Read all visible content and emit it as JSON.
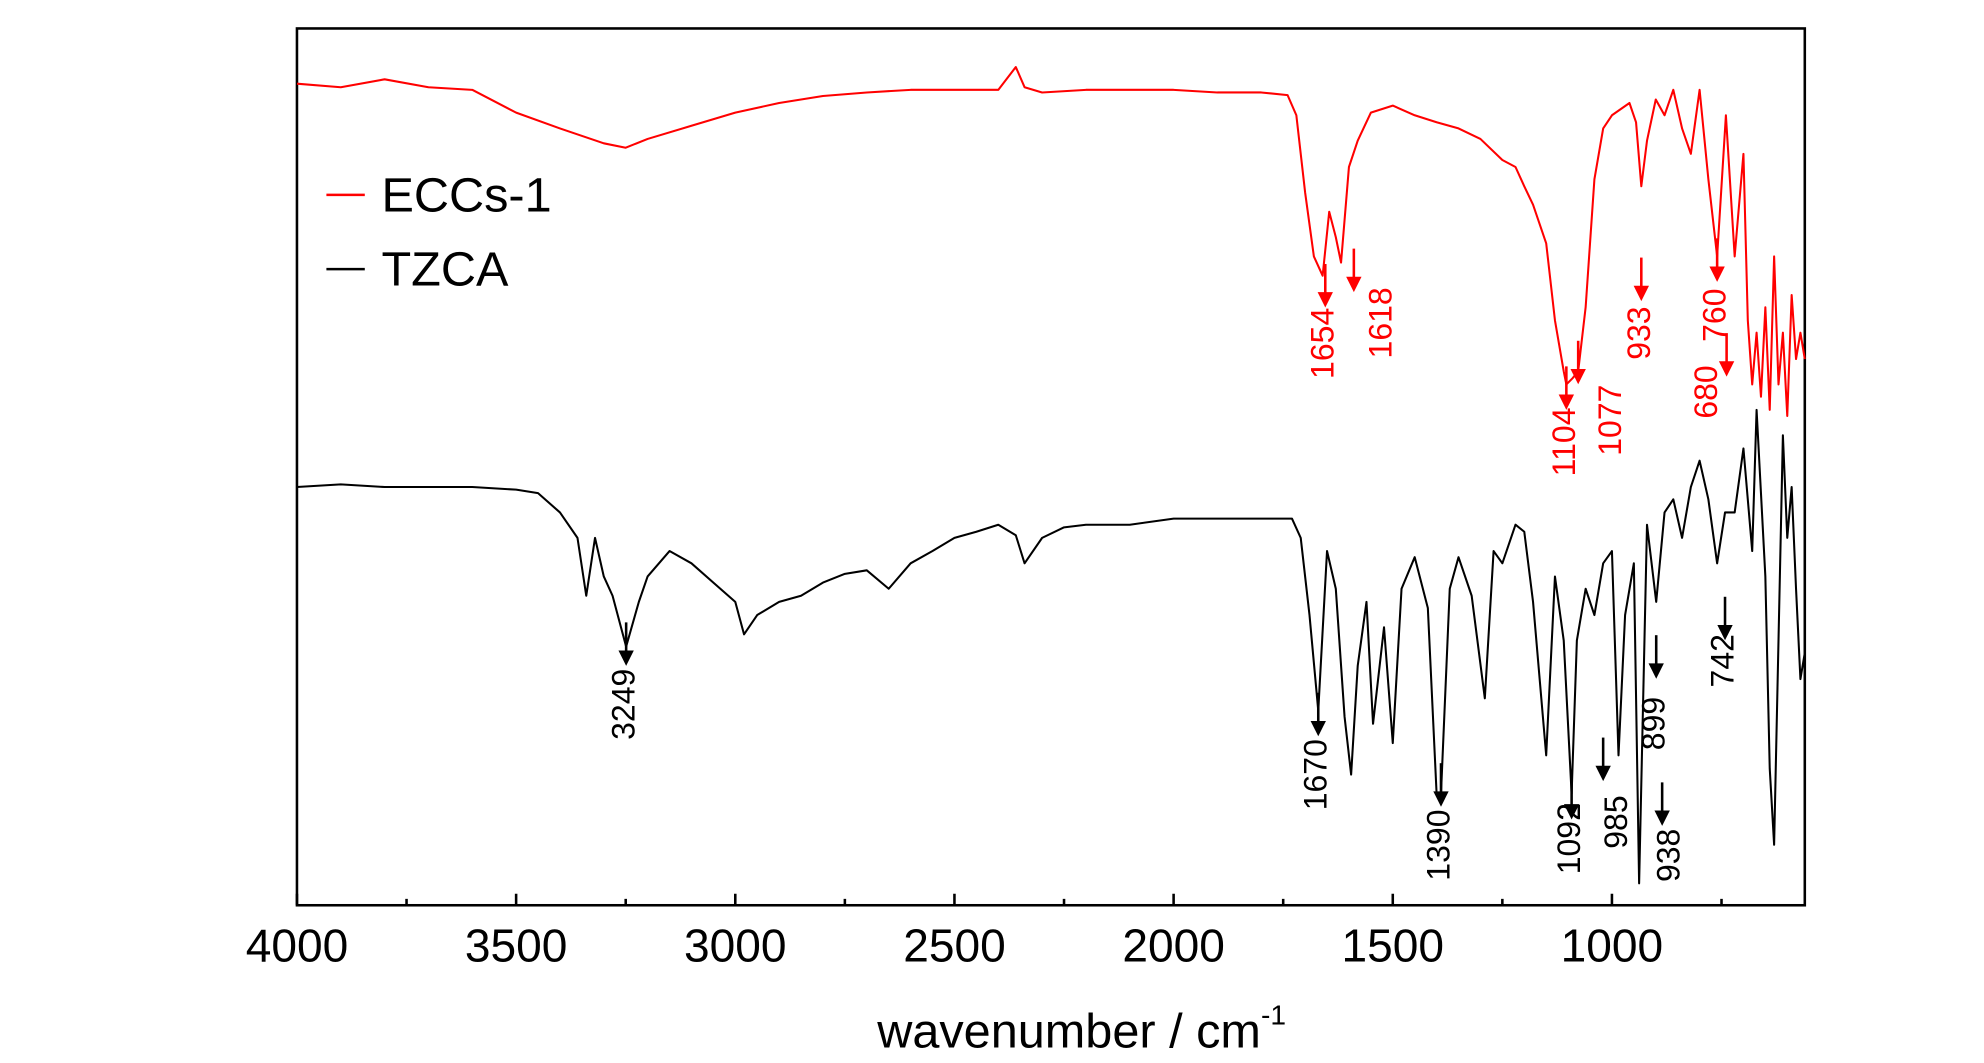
{
  "chart_data": {
    "type": "line",
    "x_label": {
      "text": "wavenumber / cm",
      "superscript": "-1"
    },
    "xlim": [
      4000,
      560
    ],
    "ylim": [
      0,
      100
    ],
    "xticks": [
      4000,
      3500,
      3000,
      2500,
      2000,
      1500,
      1000
    ],
    "xminorticks": [
      3750,
      3250,
      2750,
      2250,
      1750,
      1250,
      750
    ],
    "legend": "upper left",
    "series": [
      {
        "name": "ECCs-1",
        "color": "#ff0000",
        "x": [
          4000,
          3900,
          3800,
          3700,
          3600,
          3500,
          3400,
          3300,
          3250,
          3200,
          3100,
          3000,
          2900,
          2800,
          2700,
          2600,
          2500,
          2400,
          2360,
          2340,
          2300,
          2200,
          2100,
          2000,
          1900,
          1800,
          1740,
          1720,
          1700,
          1680,
          1660,
          1645,
          1630,
          1618,
          1600,
          1580,
          1550,
          1500,
          1450,
          1400,
          1350,
          1300,
          1250,
          1220,
          1200,
          1180,
          1150,
          1130,
          1110,
          1104,
          1090,
          1077,
          1060,
          1040,
          1020,
          1000,
          980,
          960,
          945,
          933,
          920,
          900,
          880,
          860,
          840,
          820,
          800,
          780,
          760,
          740,
          720,
          700,
          690,
          680,
          670,
          660,
          650,
          640,
          630,
          620,
          610,
          600,
          590,
          580,
          570,
          560
        ],
        "values": [
          93.7,
          93.3,
          94.2,
          93.3,
          93.0,
          90.4,
          88.6,
          86.9,
          86.4,
          87.4,
          88.9,
          90.4,
          91.5,
          92.3,
          92.7,
          93.0,
          93.0,
          93.0,
          95.6,
          93.3,
          92.7,
          93.0,
          93.0,
          93.0,
          92.7,
          92.7,
          92.4,
          90.1,
          81.3,
          74.0,
          71.8,
          79.1,
          76.2,
          73.3,
          84.2,
          87.2,
          90.4,
          91.2,
          90.1,
          89.3,
          88.6,
          87.4,
          85.0,
          84.2,
          82.0,
          79.9,
          75.5,
          66.7,
          60.9,
          59.4,
          60.1,
          60.9,
          68.2,
          82.8,
          88.6,
          90.1,
          90.8,
          91.5,
          89.3,
          82.0,
          87.2,
          91.9,
          90.1,
          93.0,
          88.6,
          85.7,
          93.0,
          82.8,
          74.0,
          90.1,
          74.0,
          85.7,
          66.7,
          59.4,
          65.3,
          58.0,
          68.2,
          56.5,
          74.0,
          59.4,
          65.3,
          55.8,
          69.6,
          62.3,
          65.3,
          62.3
        ]
      },
      {
        "name": "TZCA",
        "color": "#000000",
        "x": [
          4000,
          3900,
          3800,
          3700,
          3600,
          3500,
          3450,
          3400,
          3360,
          3340,
          3320,
          3300,
          3280,
          3249,
          3220,
          3200,
          3150,
          3100,
          3050,
          3000,
          2980,
          2950,
          2900,
          2850,
          2800,
          2750,
          2700,
          2650,
          2600,
          2550,
          2500,
          2450,
          2400,
          2360,
          2340,
          2300,
          2250,
          2200,
          2100,
          2000,
          1900,
          1800,
          1730,
          1710,
          1690,
          1670,
          1650,
          1630,
          1610,
          1595,
          1580,
          1560,
          1545,
          1520,
          1500,
          1480,
          1450,
          1420,
          1400,
          1390,
          1370,
          1350,
          1320,
          1290,
          1270,
          1250,
          1220,
          1200,
          1180,
          1150,
          1130,
          1110,
          1092,
          1080,
          1060,
          1040,
          1020,
          1000,
          985,
          970,
          950,
          938,
          920,
          899,
          880,
          860,
          840,
          820,
          800,
          780,
          760,
          742,
          720,
          700,
          680,
          670,
          650,
          640,
          630,
          620,
          610,
          600,
          590,
          580,
          570,
          560
        ],
        "values": [
          47.7,
          48.0,
          47.7,
          47.7,
          47.7,
          47.4,
          47.0,
          44.8,
          41.9,
          35.3,
          41.9,
          37.5,
          35.3,
          29.5,
          34.6,
          37.5,
          40.4,
          39.0,
          36.8,
          34.6,
          30.9,
          33.1,
          34.6,
          35.3,
          36.8,
          37.8,
          38.2,
          36.1,
          39.0,
          40.4,
          41.9,
          42.6,
          43.4,
          42.2,
          39.0,
          41.9,
          43.1,
          43.4,
          43.4,
          44.1,
          44.1,
          44.1,
          44.1,
          41.9,
          33.1,
          22.2,
          40.4,
          36.1,
          21.5,
          14.9,
          27.3,
          34.6,
          20.7,
          31.7,
          18.5,
          36.1,
          39.7,
          33.9,
          12.7,
          12.7,
          36.1,
          39.7,
          35.3,
          23.6,
          40.4,
          39.0,
          43.4,
          42.6,
          34.6,
          17.1,
          37.5,
          30.2,
          12.7,
          30.2,
          36.1,
          33.1,
          39.0,
          40.4,
          17.1,
          33.1,
          39.0,
          2.5,
          43.4,
          34.6,
          44.8,
          46.3,
          41.9,
          47.7,
          50.7,
          46.3,
          39.0,
          44.8,
          44.8,
          52.1,
          40.4,
          56.5,
          37.5,
          15.6,
          6.9,
          30.2,
          53.6,
          41.9,
          47.7,
          36.1,
          25.8,
          28.8
        ]
      }
    ],
    "annotations": [
      {
        "label": "1654",
        "series": 0
      },
      {
        "label": "1618",
        "series": 0
      },
      {
        "label": "1104",
        "series": 0
      },
      {
        "label": "1077",
        "series": 0
      },
      {
        "label": "933",
        "series": 0
      },
      {
        "label": "760",
        "series": 0
      },
      {
        "label": "680",
        "series": 0
      },
      {
        "label": "3249",
        "series": 1
      },
      {
        "label": "1670",
        "series": 1
      },
      {
        "label": "1390",
        "series": 1
      },
      {
        "label": "1092",
        "series": 1
      },
      {
        "label": "985",
        "series": 1
      },
      {
        "label": "938",
        "series": 1
      },
      {
        "label": "899",
        "series": 1
      },
      {
        "label": "742",
        "series": 1
      }
    ]
  }
}
